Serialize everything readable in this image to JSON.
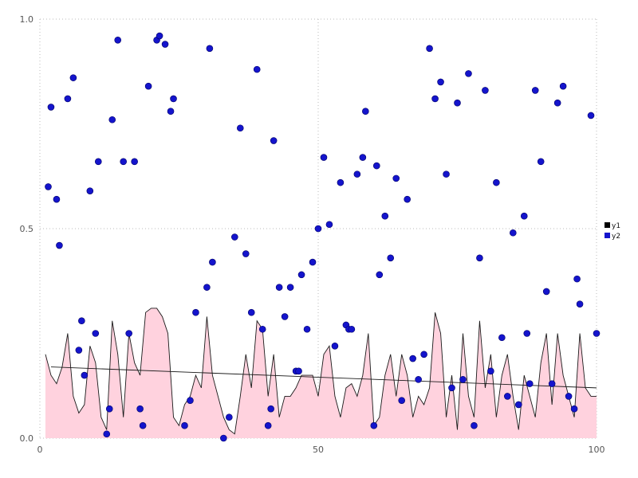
{
  "chart_data": {
    "type": "mixed-area-scatter",
    "title": "",
    "xlabel": "",
    "ylabel": "",
    "xlim": [
      0,
      100
    ],
    "ylim": [
      0.0,
      1.0
    ],
    "grid": "dotted",
    "x_ticks": [
      0,
      50,
      100
    ],
    "y_ticks": [
      {
        "value": 0.0,
        "label": "0.0"
      },
      {
        "value": 0.5,
        "label": "0.5"
      },
      {
        "value": 1.0,
        "label": "1.0"
      }
    ],
    "legend": {
      "position": "right-outside",
      "entries": [
        {
          "label": "y1",
          "color": "#000000",
          "kind": "area-line"
        },
        {
          "label": "y2",
          "color": "#1414cc",
          "kind": "scatter"
        }
      ]
    },
    "area_series": {
      "name": "y1",
      "fill_color": "#ffd2de",
      "line_color": "#1a1a1a",
      "x_start": 1,
      "x_step": 1,
      "values": [
        0.2,
        0.15,
        0.13,
        0.17,
        0.25,
        0.1,
        0.06,
        0.08,
        0.22,
        0.18,
        0.05,
        0.02,
        0.28,
        0.2,
        0.05,
        0.25,
        0.18,
        0.15,
        0.3,
        0.31,
        0.31,
        0.29,
        0.25,
        0.05,
        0.03,
        0.08,
        0.1,
        0.15,
        0.12,
        0.29,
        0.15,
        0.1,
        0.05,
        0.02,
        0.01,
        0.1,
        0.2,
        0.12,
        0.28,
        0.26,
        0.1,
        0.2,
        0.05,
        0.1,
        0.1,
        0.12,
        0.15,
        0.15,
        0.15,
        0.1,
        0.2,
        0.22,
        0.1,
        0.05,
        0.12,
        0.13,
        0.1,
        0.15,
        0.25,
        0.03,
        0.05,
        0.15,
        0.2,
        0.1,
        0.2,
        0.15,
        0.05,
        0.1,
        0.08,
        0.12,
        0.3,
        0.25,
        0.05,
        0.15,
        0.02,
        0.25,
        0.1,
        0.05,
        0.28,
        0.12,
        0.2,
        0.05,
        0.15,
        0.2,
        0.1,
        0.02,
        0.15,
        0.1,
        0.05,
        0.18,
        0.25,
        0.08,
        0.25,
        0.15,
        0.1,
        0.05,
        0.25,
        0.12,
        0.1,
        0.1
      ]
    },
    "trend_line": {
      "color": "#1a1a1a",
      "x": [
        2,
        100
      ],
      "y": [
        0.17,
        0.12
      ]
    },
    "scatter_series": {
      "name": "y2",
      "color": "#1414cc",
      "edge_color": "#000066",
      "radius": 4,
      "points": [
        [
          1.5,
          0.6
        ],
        [
          2,
          0.79
        ],
        [
          3,
          0.57
        ],
        [
          3.5,
          0.46
        ],
        [
          5,
          0.81
        ],
        [
          6,
          0.86
        ],
        [
          7,
          0.21
        ],
        [
          7.5,
          0.28
        ],
        [
          8,
          0.15
        ],
        [
          9,
          0.59
        ],
        [
          10,
          0.25
        ],
        [
          10.5,
          0.66
        ],
        [
          12,
          0.01
        ],
        [
          12.5,
          0.07
        ],
        [
          13,
          0.76
        ],
        [
          14,
          0.95
        ],
        [
          15,
          0.66
        ],
        [
          16,
          0.25
        ],
        [
          17,
          0.66
        ],
        [
          18,
          0.07
        ],
        [
          18.5,
          0.03
        ],
        [
          19.5,
          0.84
        ],
        [
          21,
          0.95
        ],
        [
          21.5,
          0.96
        ],
        [
          22.5,
          0.94
        ],
        [
          23.5,
          0.78
        ],
        [
          24,
          0.81
        ],
        [
          26,
          0.03
        ],
        [
          27,
          0.09
        ],
        [
          28,
          0.3
        ],
        [
          30,
          0.36
        ],
        [
          30.5,
          0.93
        ],
        [
          31,
          0.42
        ],
        [
          33,
          0.0
        ],
        [
          34,
          0.05
        ],
        [
          35,
          0.48
        ],
        [
          36,
          0.74
        ],
        [
          37,
          0.44
        ],
        [
          38,
          0.3
        ],
        [
          39,
          0.88
        ],
        [
          40,
          0.26
        ],
        [
          41,
          0.03
        ],
        [
          41.5,
          0.07
        ],
        [
          42,
          0.71
        ],
        [
          43,
          0.36
        ],
        [
          44,
          0.29
        ],
        [
          45,
          0.36
        ],
        [
          46,
          0.16
        ],
        [
          46.5,
          0.16
        ],
        [
          47,
          0.39
        ],
        [
          48,
          0.26
        ],
        [
          49,
          0.42
        ],
        [
          50,
          0.5
        ],
        [
          51,
          0.67
        ],
        [
          52,
          0.51
        ],
        [
          53,
          0.22
        ],
        [
          54,
          0.61
        ],
        [
          55,
          0.27
        ],
        [
          55.5,
          0.26
        ],
        [
          56,
          0.26
        ],
        [
          57,
          0.63
        ],
        [
          58,
          0.67
        ],
        [
          58.5,
          0.78
        ],
        [
          60,
          0.03
        ],
        [
          60.5,
          0.65
        ],
        [
          61,
          0.39
        ],
        [
          62,
          0.53
        ],
        [
          63,
          0.43
        ],
        [
          64,
          0.62
        ],
        [
          65,
          0.09
        ],
        [
          66,
          0.57
        ],
        [
          67,
          0.19
        ],
        [
          68,
          0.14
        ],
        [
          69,
          0.2
        ],
        [
          70,
          0.93
        ],
        [
          71,
          0.81
        ],
        [
          72,
          0.85
        ],
        [
          73,
          0.63
        ],
        [
          74,
          0.12
        ],
        [
          75,
          0.8
        ],
        [
          76,
          0.14
        ],
        [
          77,
          0.87
        ],
        [
          78,
          0.03
        ],
        [
          79,
          0.43
        ],
        [
          80,
          0.83
        ],
        [
          81,
          0.16
        ],
        [
          82,
          0.61
        ],
        [
          83,
          0.24
        ],
        [
          84,
          0.1
        ],
        [
          85,
          0.49
        ],
        [
          86,
          0.08
        ],
        [
          87,
          0.53
        ],
        [
          87.5,
          0.25
        ],
        [
          88,
          0.13
        ],
        [
          89,
          0.83
        ],
        [
          90,
          0.66
        ],
        [
          91,
          0.35
        ],
        [
          92,
          0.13
        ],
        [
          93,
          0.8
        ],
        [
          94,
          0.84
        ],
        [
          95,
          0.1
        ],
        [
          96,
          0.07
        ],
        [
          96.5,
          0.38
        ],
        [
          97,
          0.32
        ],
        [
          99,
          0.77
        ],
        [
          100,
          0.25
        ]
      ]
    }
  }
}
